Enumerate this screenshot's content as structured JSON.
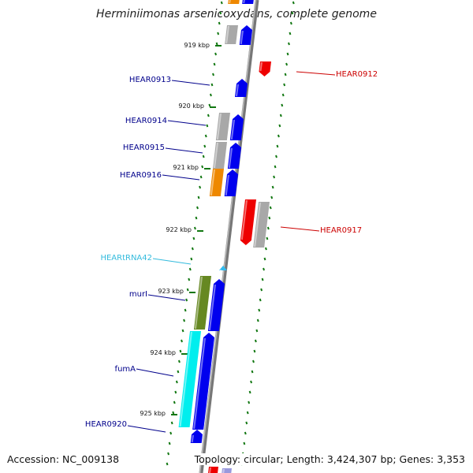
{
  "title": "Herminiimonas arsenicoxydans, complete genome",
  "accession": "Accession: NC_009138",
  "topology": "Topology: circular; Length: 3,424,307 bp; Genes: 3,353",
  "kbp_marks": [
    "919 kbp",
    "920 kbp",
    "921 kbp",
    "922 kbp",
    "923 kbp",
    "924 kbp",
    "925 kbp"
  ],
  "gene_labels": [
    {
      "text": "HEAR0912",
      "color": "#cc0000"
    },
    {
      "text": "HEAR0913",
      "color": "#00008b"
    },
    {
      "text": "HEAR0914",
      "color": "#00008b"
    },
    {
      "text": "HEAR0915",
      "color": "#00008b"
    },
    {
      "text": "HEAR0916",
      "color": "#00008b"
    },
    {
      "text": "HEAR0917",
      "color": "#cc0000"
    },
    {
      "text": "HEARtRNA42",
      "color": "#33bbdd"
    },
    {
      "text": "murI",
      "color": "#00008b"
    },
    {
      "text": "fumA",
      "color": "#00008b"
    },
    {
      "text": "HEAR0920",
      "color": "#00008b"
    }
  ],
  "colors": {
    "forward_cds": "#0000ee",
    "reverse_cds": "#ee0000",
    "trna": "#33bbee",
    "backbone": "#888888",
    "dots": "#117711",
    "cog_gray": "#a8a8a8",
    "cog_orange": "#ee8800",
    "cog_olive": "#668822",
    "cog_cyan": "#00eeee"
  }
}
